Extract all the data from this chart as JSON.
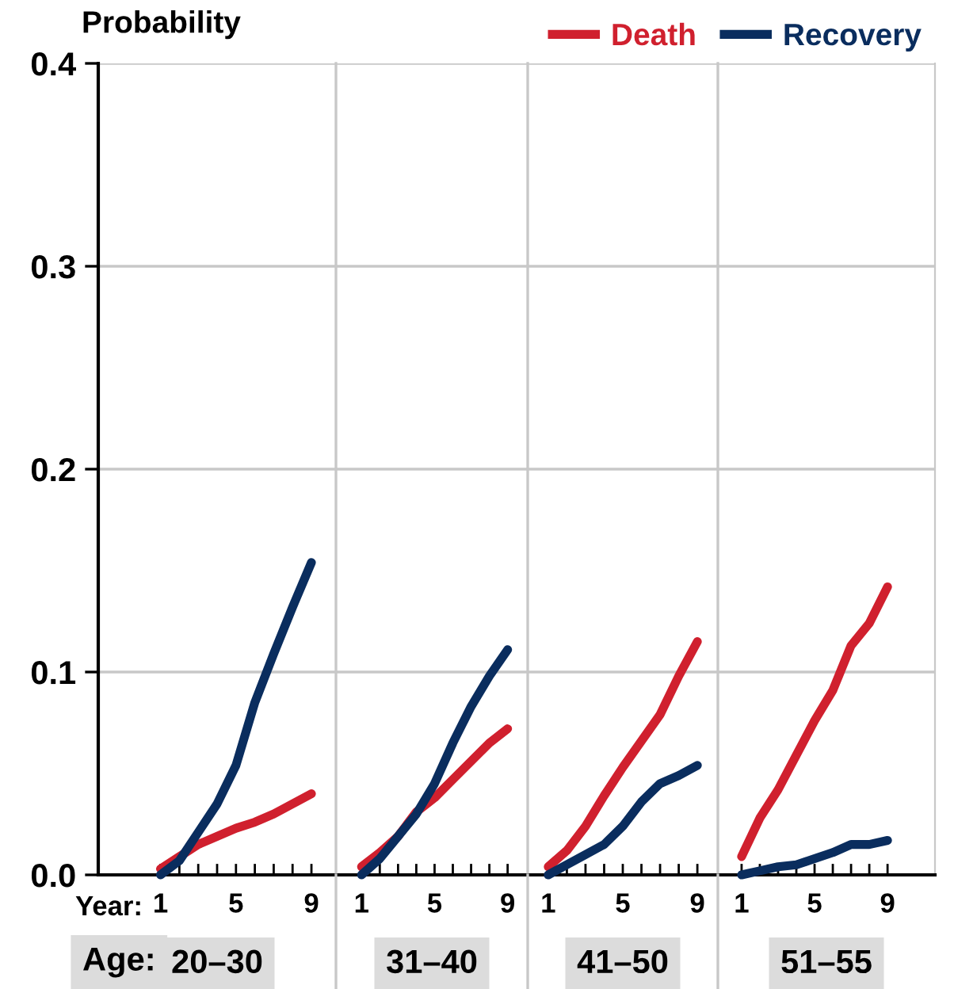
{
  "chart_data": [
    {
      "type": "line",
      "ylabel": "Probability",
      "xlabel": "20–30",
      "legend": "top right",
      "grid": "y",
      "annotations": [
        "Year:",
        "Age:"
      ],
      "x": [
        1,
        2,
        3,
        4,
        5,
        6,
        7,
        8,
        9
      ],
      "xlim": [
        -2.3,
        10.3
      ],
      "xticks": [
        1,
        {
          "value": 2,
          "label": null
        },
        {
          "value": 3,
          "label": null
        },
        {
          "value": 4,
          "label": null
        },
        5,
        {
          "value": 6,
          "label": null
        },
        {
          "value": 7,
          "label": null
        },
        {
          "value": 8,
          "label": null
        },
        9
      ],
      "ylim": [
        0,
        0.4
      ],
      "yticks": [
        {
          "value": 0,
          "label": "0.0"
        },
        0.1,
        0.2,
        0.3,
        0.4
      ],
      "series": [
        {
          "name": "Death",
          "color": "#d0202e",
          "values": [
            0.003,
            0.009,
            0.015,
            0.019,
            0.023,
            0.026,
            0.03,
            0.035,
            0.04
          ]
        },
        {
          "name": "Recovery",
          "color": "#0a2d5e",
          "values": [
            0.0,
            0.007,
            0.021,
            0.035,
            0.054,
            0.085,
            0.109,
            0.132,
            0.154
          ]
        }
      ]
    },
    {
      "type": "line",
      "xlabel": "31–40",
      "grid": "y",
      "tick_labels": "x",
      "x": [
        1,
        2,
        3,
        4,
        5,
        6,
        7,
        8,
        9
      ],
      "xlim": [
        -0.4,
        10.1
      ],
      "xticks": [
        1,
        {
          "value": 2,
          "label": null
        },
        {
          "value": 3,
          "label": null
        },
        {
          "value": 4,
          "label": null
        },
        5,
        {
          "value": 6,
          "label": null
        },
        {
          "value": 7,
          "label": null
        },
        {
          "value": 8,
          "label": null
        },
        9
      ],
      "ylim": [
        0,
        0.4
      ],
      "yticks": [
        0,
        0.1,
        0.2,
        0.3,
        0.4
      ],
      "series": [
        {
          "color": "#d0202e",
          "values": [
            0.004,
            0.011,
            0.019,
            0.031,
            0.038,
            0.047,
            0.056,
            0.065,
            0.072
          ]
        },
        {
          "color": "#0a2d5e",
          "values": [
            0.0,
            0.008,
            0.019,
            0.03,
            0.045,
            0.065,
            0.083,
            0.098,
            0.111
          ]
        }
      ]
    },
    {
      "type": "line",
      "xlabel": "41–50",
      "grid": "y",
      "tick_labels": "x",
      "x": [
        1,
        2,
        3,
        4,
        5,
        6,
        7,
        8,
        9
      ],
      "xlim": [
        -0.1,
        10.1
      ],
      "xticks": [
        1,
        {
          "value": 2,
          "label": null
        },
        {
          "value": 3,
          "label": null
        },
        {
          "value": 4,
          "label": null
        },
        5,
        {
          "value": 6,
          "label": null
        },
        {
          "value": 7,
          "label": null
        },
        {
          "value": 8,
          "label": null
        },
        9
      ],
      "ylim": [
        0,
        0.4
      ],
      "yticks": [
        0,
        0.1,
        0.2,
        0.3,
        0.4
      ],
      "series": [
        {
          "color": "#d0202e",
          "values": [
            0.004,
            0.012,
            0.024,
            0.039,
            0.053,
            0.066,
            0.079,
            0.098,
            0.115
          ]
        },
        {
          "color": "#0a2d5e",
          "values": [
            0.0,
            0.005,
            0.01,
            0.015,
            0.024,
            0.036,
            0.045,
            0.049,
            0.054
          ]
        }
      ]
    },
    {
      "type": "line",
      "xlabel": "51–55",
      "grid": "y",
      "tick_labels": "x",
      "x": [
        1,
        2,
        3,
        4,
        5,
        6,
        7,
        8,
        9
      ],
      "xlim": [
        -0.3,
        11.6
      ],
      "xticks": [
        1,
        {
          "value": 2,
          "label": null
        },
        {
          "value": 3,
          "label": null
        },
        {
          "value": 4,
          "label": null
        },
        5,
        {
          "value": 6,
          "label": null
        },
        {
          "value": 7,
          "label": null
        },
        {
          "value": 8,
          "label": null
        },
        9
      ],
      "ylim": [
        0,
        0.4
      ],
      "yticks": [
        0,
        0.1,
        0.2,
        0.3,
        0.4
      ],
      "series": [
        {
          "color": "#d0202e",
          "values": [
            0.009,
            0.028,
            0.042,
            0.059,
            0.076,
            0.091,
            0.113,
            0.124,
            0.142
          ]
        },
        {
          "color": "#0a2d5e",
          "values": [
            0.0,
            0.002,
            0.004,
            0.005,
            0.008,
            0.011,
            0.015,
            0.015,
            0.017
          ]
        }
      ]
    }
  ]
}
